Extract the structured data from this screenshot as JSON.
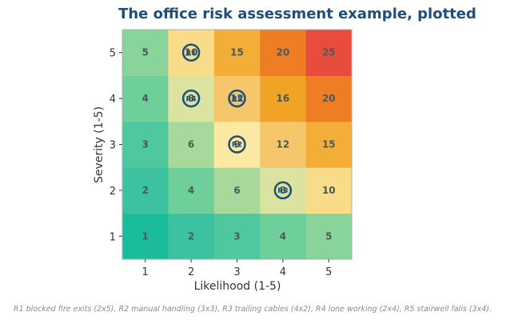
{
  "chart_data": {
    "type": "heatmap",
    "title": "The office risk assessment example, plotted",
    "xlabel": "Likelihood (1-5)",
    "ylabel": "Severity (1-5)",
    "x_ticks": [
      "1",
      "2",
      "3",
      "4",
      "5"
    ],
    "y_ticks": [
      "1",
      "2",
      "3",
      "4",
      "5"
    ],
    "value_rule": "likelihood x severity",
    "cells": [
      {
        "likelihood": 1,
        "severity": 1,
        "value": 1
      },
      {
        "likelihood": 2,
        "severity": 1,
        "value": 2
      },
      {
        "likelihood": 3,
        "severity": 1,
        "value": 3
      },
      {
        "likelihood": 4,
        "severity": 1,
        "value": 4
      },
      {
        "likelihood": 5,
        "severity": 1,
        "value": 5
      },
      {
        "likelihood": 1,
        "severity": 2,
        "value": 2
      },
      {
        "likelihood": 2,
        "severity": 2,
        "value": 4
      },
      {
        "likelihood": 3,
        "severity": 2,
        "value": 6
      },
      {
        "likelihood": 4,
        "severity": 2,
        "value": 8
      },
      {
        "likelihood": 5,
        "severity": 2,
        "value": 10
      },
      {
        "likelihood": 1,
        "severity": 3,
        "value": 3
      },
      {
        "likelihood": 2,
        "severity": 3,
        "value": 6
      },
      {
        "likelihood": 3,
        "severity": 3,
        "value": 9
      },
      {
        "likelihood": 4,
        "severity": 3,
        "value": 12
      },
      {
        "likelihood": 5,
        "severity": 3,
        "value": 15
      },
      {
        "likelihood": 1,
        "severity": 4,
        "value": 4
      },
      {
        "likelihood": 2,
        "severity": 4,
        "value": 8
      },
      {
        "likelihood": 3,
        "severity": 4,
        "value": 12
      },
      {
        "likelihood": 4,
        "severity": 4,
        "value": 16
      },
      {
        "likelihood": 5,
        "severity": 4,
        "value": 20
      },
      {
        "likelihood": 1,
        "severity": 5,
        "value": 5
      },
      {
        "likelihood": 2,
        "severity": 5,
        "value": 10
      },
      {
        "likelihood": 3,
        "severity": 5,
        "value": 15
      },
      {
        "likelihood": 4,
        "severity": 5,
        "value": 20
      },
      {
        "likelihood": 5,
        "severity": 5,
        "value": 25
      }
    ],
    "risks": [
      {
        "id": "R1",
        "likelihood": 2,
        "severity": 5
      },
      {
        "id": "R2",
        "likelihood": 3,
        "severity": 3
      },
      {
        "id": "R3",
        "likelihood": 4,
        "severity": 2
      },
      {
        "id": "R4",
        "likelihood": 2,
        "severity": 4
      },
      {
        "id": "R5",
        "likelihood": 3,
        "severity": 4
      }
    ],
    "colors": {
      "1": "#1abc9c",
      "2": "#3cc2a0",
      "3": "#4fc89f",
      "4": "#6fcf9b",
      "5": "#88d49a",
      "6": "#a8d99a",
      "8": "#dbe3a0",
      "9": "#fbe8a2",
      "10": "#f9dc8a",
      "12": "#f5c76a",
      "15": "#f2ae39",
      "16": "#f0a324",
      "20": "#ee7d24",
      "25": "#e84c3d"
    },
    "marker_color": "#1f4e79",
    "footnote": "R1 blocked fire exits (2x5), R2 manual handling (3x3), R3 trailing cables (4x2), R4 lone working (2x4), R5 stairwell falls (3x4)."
  }
}
